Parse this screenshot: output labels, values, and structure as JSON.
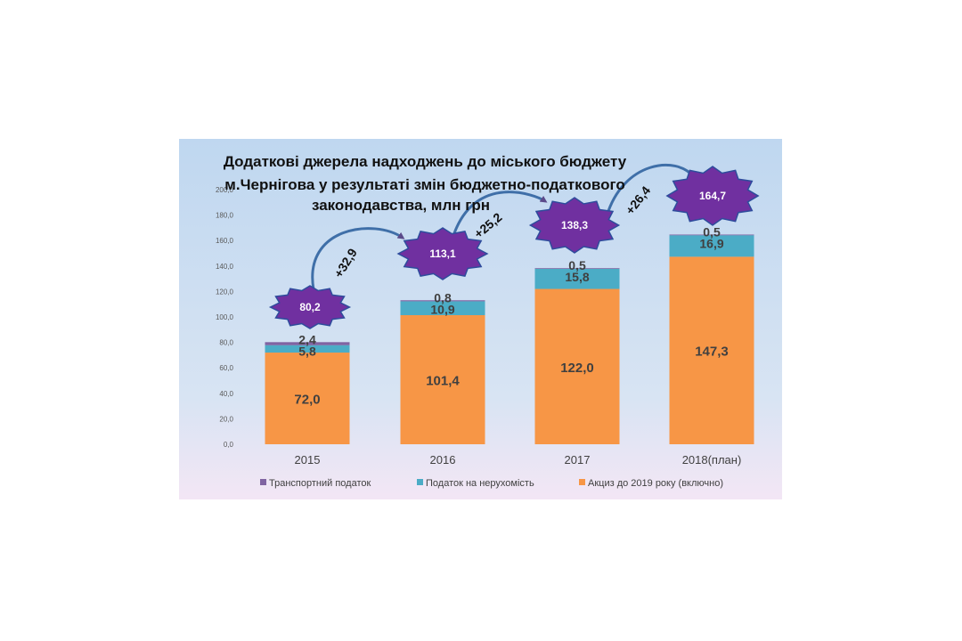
{
  "chart_data": {
    "type": "bar",
    "stacked": true,
    "title_lines": [
      "Додаткові джерела надходжень до міського бюджету",
      "м.Чернігова у результаті змін бюджетно-податкового",
      "законодавства,  млн грн"
    ],
    "categories": [
      "2015",
      "2016",
      "2017",
      "2018(план)"
    ],
    "series": [
      {
        "name": "Акциз до 2019 року (включно)",
        "color": "#F79646",
        "values": [
          72.0,
          101.4,
          122.0,
          147.3
        ],
        "labels": [
          "72,0",
          "101,4",
          "122,0",
          "147,3"
        ]
      },
      {
        "name": "Податок на нерухомість",
        "color": "#4BACC6",
        "values": [
          5.8,
          10.9,
          15.8,
          16.9
        ],
        "labels": [
          "5,8",
          "10,9",
          "15,8",
          "16,9"
        ]
      },
      {
        "name": "Транспортний податок",
        "color": "#8064A2",
        "values": [
          2.4,
          0.8,
          0.5,
          0.5
        ],
        "labels": [
          "2,4",
          "0,8",
          "0,5",
          "0,5"
        ]
      }
    ],
    "legend_order": [
      "Транспортний податок",
      "Податок на нерухомість",
      "Акциз до 2019 року (включно)"
    ],
    "legend_position": "bottom",
    "totals": [
      "80,2",
      "113,1",
      "138,3",
      "164,7"
    ],
    "increments": [
      "+32,9",
      "+25,2",
      "+26,4"
    ],
    "ylim": [
      0,
      200
    ],
    "yticks": [
      "0,0",
      "20,0",
      "40,0",
      "60,0",
      "80,0",
      "100,0",
      "120,0",
      "140,0",
      "160,0",
      "180,0",
      "200,0"
    ],
    "grid": false,
    "colors": {
      "star_fill": "#7030A0",
      "star_stroke": "#2E4C9C",
      "arrow": "#3F6FA8",
      "background_top": "#BFD7F0",
      "background_bottom": "#F3E6F5"
    }
  }
}
